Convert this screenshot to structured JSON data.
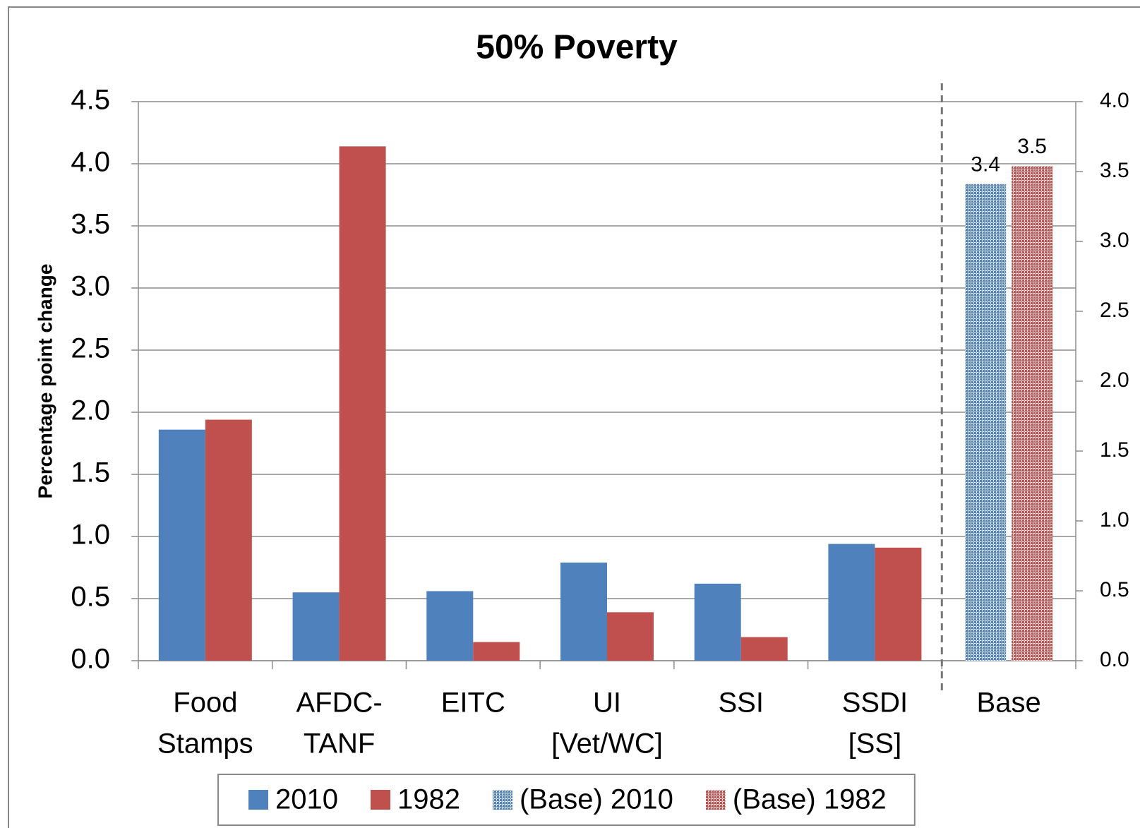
{
  "chart_data": {
    "type": "bar",
    "title": "50% Poverty",
    "ylabel": "Percentage point change",
    "categories": [
      [
        "Food",
        "Stamps"
      ],
      [
        "AFDC-",
        "TANF"
      ],
      [
        "EITC"
      ],
      [
        "UI",
        "[Vet/WC]"
      ],
      [
        "SSI"
      ],
      [
        "SSDI",
        "[SS]"
      ],
      [
        "Base"
      ]
    ],
    "series": [
      {
        "name": "2010",
        "color": "#4f81bd",
        "values": [
          1.86,
          0.55,
          0.56,
          0.79,
          0.62,
          0.94,
          null
        ]
      },
      {
        "name": "1982",
        "color": "#c0504d",
        "values": [
          1.94,
          4.14,
          0.15,
          0.39,
          0.19,
          0.91,
          null
        ]
      },
      {
        "name": "(Base) 2010",
        "color": "#4f81bd",
        "pattern": "dots",
        "axis": "y2",
        "values": [
          null,
          null,
          null,
          null,
          null,
          null,
          3.41
        ],
        "value_labels": [
          null,
          null,
          null,
          null,
          null,
          null,
          "3.4"
        ]
      },
      {
        "name": "(Base) 1982",
        "color": "#c0504d",
        "pattern": "dots",
        "axis": "y2",
        "values": [
          null,
          null,
          null,
          null,
          null,
          null,
          3.54
        ],
        "value_labels": [
          null,
          null,
          null,
          null,
          null,
          null,
          "3.5"
        ]
      }
    ],
    "ylim": [
      0,
      4.5
    ],
    "yticks": [
      {
        "value": 0,
        "label": "0.0"
      },
      0.5,
      {
        "value": 1,
        "label": "1.0"
      },
      1.5,
      {
        "value": 2,
        "label": "2.0"
      },
      2.5,
      {
        "value": 3,
        "label": "3.0"
      },
      3.5,
      {
        "value": 4,
        "label": "4.0"
      },
      4.5
    ],
    "y2lim": [
      0,
      4.0
    ],
    "y2ticks": [
      {
        "value": 0,
        "label": "0.0"
      },
      0.5,
      {
        "value": 1,
        "label": "1.0"
      },
      1.5,
      {
        "value": 2,
        "label": "2.0"
      },
      2.5,
      {
        "value": 3,
        "label": "3.0"
      },
      3.5,
      {
        "value": 4,
        "label": "4.0"
      }
    ],
    "grid": true,
    "legend": "bottom"
  }
}
